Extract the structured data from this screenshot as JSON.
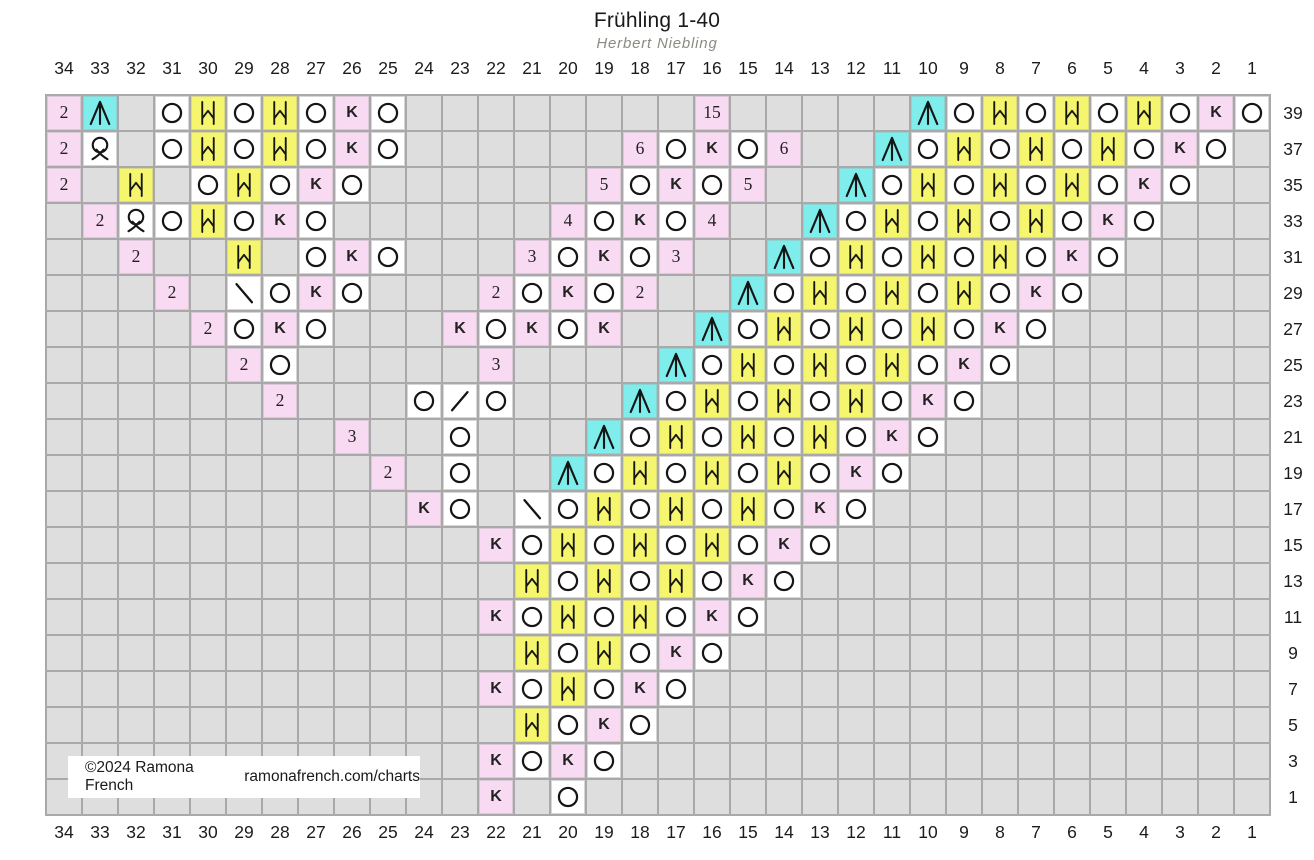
{
  "title": "Frühling 1-40",
  "subtitle": "Herbert Niebling",
  "footer": {
    "copyright": "©2024 Ramona French",
    "website": "ramonafrench.com/charts"
  },
  "chart_data": {
    "type": "heatmap",
    "description": "Lace knitting chart grid, 34 stitch columns by 20 odd-numbered rows",
    "columns": [
      34,
      33,
      32,
      31,
      30,
      29,
      28,
      27,
      26,
      25,
      24,
      23,
      22,
      21,
      20,
      19,
      18,
      17,
      16,
      15,
      14,
      13,
      12,
      11,
      10,
      9,
      8,
      7,
      6,
      5,
      4,
      3,
      2,
      1
    ],
    "row_labels": [
      39,
      37,
      35,
      33,
      31,
      29,
      27,
      25,
      23,
      21,
      19,
      17,
      15,
      13,
      11,
      9,
      7,
      5,
      3,
      1
    ],
    "colors": {
      "background": "#ffffff",
      "grid_line": "#a9a9a9",
      "empty_cell": "#dedede",
      "symbol_cell": "#ffffff",
      "pink_cell": "#f8dbf2",
      "yellow_cell": "#f5f56e",
      "cyan_cell": "#7fedeb",
      "symbol_stroke": "#151515"
    },
    "symbol_legend": {
      "O": "yarn-over-circle (white cell)",
      "K": "letter K (pink cell)",
      "H": "bar-caret-bar increase glyph (yellow cell)",
      "A": "three-prong decrease glyph (cyan cell)",
      "Q": "twisted-loop glyph (white cell)",
      "\\": "backslash decrease (white cell)",
      "/": "forward-slash decrease (white cell)",
      "numbers": "stitch count in pink cell",
      ".": "empty gray cell"
    },
    "rows": [
      {
        "label": 39,
        "cells": [
          "2",
          "A",
          ".",
          "O",
          "H",
          "O",
          "H",
          "O",
          "K",
          "O",
          ".",
          ".",
          ".",
          ".",
          ".",
          ".",
          ".",
          ".",
          "15",
          ".",
          ".",
          ".",
          ".",
          ".",
          "A",
          "O",
          "H",
          "O",
          "H",
          "O",
          "H",
          "O",
          "K",
          "O"
        ]
      },
      {
        "label": 37,
        "cells": [
          "2",
          "Q",
          ".",
          "O",
          "H",
          "O",
          "H",
          "O",
          "K",
          "O",
          ".",
          ".",
          ".",
          ".",
          ".",
          ".",
          "6",
          "O",
          "K",
          "O",
          "6",
          ".",
          ".",
          "A",
          "O",
          "H",
          "O",
          "H",
          "O",
          "H",
          "O",
          "K",
          "O",
          "."
        ]
      },
      {
        "label": 35,
        "cells": [
          "2",
          ".",
          "H",
          ".",
          "O",
          "H",
          "O",
          "K",
          "O",
          ".",
          ".",
          ".",
          ".",
          ".",
          ".",
          "5",
          "O",
          "K",
          "O",
          "5",
          ".",
          ".",
          "A",
          "O",
          "H",
          "O",
          "H",
          "O",
          "H",
          "O",
          "K",
          "O",
          ".",
          "."
        ]
      },
      {
        "label": 33,
        "cells": [
          ".",
          "2",
          "Q",
          "O",
          "H",
          "O",
          "K",
          "O",
          ".",
          ".",
          ".",
          ".",
          ".",
          ".",
          "4",
          "O",
          "K",
          "O",
          "4",
          ".",
          ".",
          "A",
          "O",
          "H",
          "O",
          "H",
          "O",
          "H",
          "O",
          "K",
          "O",
          ".",
          ".",
          "."
        ]
      },
      {
        "label": 31,
        "cells": [
          ".",
          ".",
          "2",
          ".",
          ".",
          "H",
          ".",
          "O",
          "K",
          "O",
          ".",
          ".",
          ".",
          "3",
          "O",
          "K",
          "O",
          "3",
          ".",
          ".",
          "A",
          "O",
          "H",
          "O",
          "H",
          "O",
          "H",
          "O",
          "K",
          "O",
          ".",
          ".",
          ".",
          "."
        ]
      },
      {
        "label": 29,
        "cells": [
          ".",
          ".",
          ".",
          "2",
          ".",
          "\\",
          "O",
          "K",
          "O",
          ".",
          ".",
          ".",
          "2",
          "O",
          "K",
          "O",
          "2",
          ".",
          ".",
          "A",
          "O",
          "H",
          "O",
          "H",
          "O",
          "H",
          "O",
          "K",
          "O",
          ".",
          ".",
          ".",
          ".",
          "."
        ]
      },
      {
        "label": 27,
        "cells": [
          ".",
          ".",
          ".",
          ".",
          "2",
          "O",
          "K",
          "O",
          ".",
          ".",
          ".",
          "K",
          "O",
          "K",
          "O",
          "K",
          ".",
          ".",
          "A",
          "O",
          "H",
          "O",
          "H",
          "O",
          "H",
          "O",
          "K",
          "O",
          ".",
          ".",
          ".",
          ".",
          ".",
          "."
        ]
      },
      {
        "label": 25,
        "cells": [
          ".",
          ".",
          ".",
          ".",
          ".",
          "2",
          "O",
          ".",
          ".",
          ".",
          ".",
          ".",
          "3",
          ".",
          ".",
          ".",
          ".",
          "A",
          "O",
          "H",
          "O",
          "H",
          "O",
          "H",
          "O",
          "K",
          "O",
          ".",
          ".",
          ".",
          ".",
          ".",
          ".",
          "."
        ]
      },
      {
        "label": 23,
        "cells": [
          ".",
          ".",
          ".",
          ".",
          ".",
          ".",
          "2",
          ".",
          ".",
          ".",
          "O",
          "/",
          "O",
          ".",
          ".",
          ".",
          "A",
          "O",
          "H",
          "O",
          "H",
          "O",
          "H",
          "O",
          "K",
          "O",
          ".",
          ".",
          ".",
          ".",
          ".",
          ".",
          ".",
          "."
        ]
      },
      {
        "label": 21,
        "cells": [
          ".",
          ".",
          ".",
          ".",
          ".",
          ".",
          ".",
          ".",
          "3",
          ".",
          ".",
          "O",
          ".",
          ".",
          ".",
          "A",
          "O",
          "H",
          "O",
          "H",
          "O",
          "H",
          "O",
          "K",
          "O",
          ".",
          ".",
          ".",
          ".",
          ".",
          ".",
          ".",
          ".",
          "."
        ]
      },
      {
        "label": 19,
        "cells": [
          ".",
          ".",
          ".",
          ".",
          ".",
          ".",
          ".",
          ".",
          ".",
          "2",
          ".",
          "O",
          ".",
          ".",
          "A",
          "O",
          "H",
          "O",
          "H",
          "O",
          "H",
          "O",
          "K",
          "O",
          ".",
          ".",
          ".",
          ".",
          ".",
          ".",
          ".",
          ".",
          ".",
          "."
        ]
      },
      {
        "label": 17,
        "cells": [
          ".",
          ".",
          ".",
          ".",
          ".",
          ".",
          ".",
          ".",
          ".",
          ".",
          "K",
          "O",
          ".",
          "\\",
          "O",
          "H",
          "O",
          "H",
          "O",
          "H",
          "O",
          "K",
          "O",
          ".",
          ".",
          ".",
          ".",
          ".",
          ".",
          ".",
          ".",
          ".",
          ".",
          "."
        ]
      },
      {
        "label": 15,
        "cells": [
          ".",
          ".",
          ".",
          ".",
          ".",
          ".",
          ".",
          ".",
          ".",
          ".",
          ".",
          ".",
          "K",
          "O",
          "H",
          "O",
          "H",
          "O",
          "H",
          "O",
          "K",
          "O",
          ".",
          ".",
          ".",
          ".",
          ".",
          ".",
          ".",
          ".",
          ".",
          ".",
          ".",
          "."
        ]
      },
      {
        "label": 13,
        "cells": [
          ".",
          ".",
          ".",
          ".",
          ".",
          ".",
          ".",
          ".",
          ".",
          ".",
          ".",
          ".",
          ".",
          "H",
          "O",
          "H",
          "O",
          "H",
          "O",
          "K",
          "O",
          ".",
          ".",
          ".",
          ".",
          ".",
          ".",
          ".",
          ".",
          ".",
          ".",
          ".",
          ".",
          "."
        ]
      },
      {
        "label": 11,
        "cells": [
          ".",
          ".",
          ".",
          ".",
          ".",
          ".",
          ".",
          ".",
          ".",
          ".",
          ".",
          ".",
          "K",
          "O",
          "H",
          "O",
          "H",
          "O",
          "K",
          "O",
          ".",
          ".",
          ".",
          ".",
          ".",
          ".",
          ".",
          ".",
          ".",
          ".",
          ".",
          ".",
          ".",
          "."
        ]
      },
      {
        "label": 9,
        "cells": [
          ".",
          ".",
          ".",
          ".",
          ".",
          ".",
          ".",
          ".",
          ".",
          ".",
          ".",
          ".",
          ".",
          "H",
          "O",
          "H",
          "O",
          "K",
          "O",
          ".",
          ".",
          ".",
          ".",
          ".",
          ".",
          ".",
          ".",
          ".",
          ".",
          ".",
          ".",
          ".",
          ".",
          "."
        ]
      },
      {
        "label": 7,
        "cells": [
          ".",
          ".",
          ".",
          ".",
          ".",
          ".",
          ".",
          ".",
          ".",
          ".",
          ".",
          ".",
          "K",
          "O",
          "H",
          "O",
          "K",
          "O",
          ".",
          ".",
          ".",
          ".",
          ".",
          ".",
          ".",
          ".",
          ".",
          ".",
          ".",
          ".",
          ".",
          ".",
          ".",
          "."
        ]
      },
      {
        "label": 5,
        "cells": [
          ".",
          ".",
          ".",
          ".",
          ".",
          ".",
          ".",
          ".",
          ".",
          ".",
          ".",
          ".",
          ".",
          "H",
          "O",
          "K",
          "O",
          ".",
          ".",
          ".",
          ".",
          ".",
          ".",
          ".",
          ".",
          ".",
          ".",
          ".",
          ".",
          ".",
          ".",
          ".",
          ".",
          "."
        ]
      },
      {
        "label": 3,
        "cells": [
          ".",
          ".",
          ".",
          ".",
          ".",
          ".",
          ".",
          ".",
          ".",
          ".",
          ".",
          ".",
          "K",
          "O",
          "K",
          "O",
          ".",
          ".",
          ".",
          ".",
          ".",
          ".",
          ".",
          ".",
          ".",
          ".",
          ".",
          ".",
          ".",
          ".",
          ".",
          ".",
          ".",
          "."
        ]
      },
      {
        "label": 1,
        "cells": [
          ".",
          ".",
          ".",
          ".",
          ".",
          ".",
          ".",
          ".",
          ".",
          ".",
          ".",
          ".",
          "K",
          ".",
          "O",
          ".",
          ".",
          ".",
          ".",
          ".",
          ".",
          ".",
          ".",
          ".",
          ".",
          ".",
          ".",
          ".",
          ".",
          ".",
          ".",
          ".",
          ".",
          "."
        ]
      }
    ]
  }
}
